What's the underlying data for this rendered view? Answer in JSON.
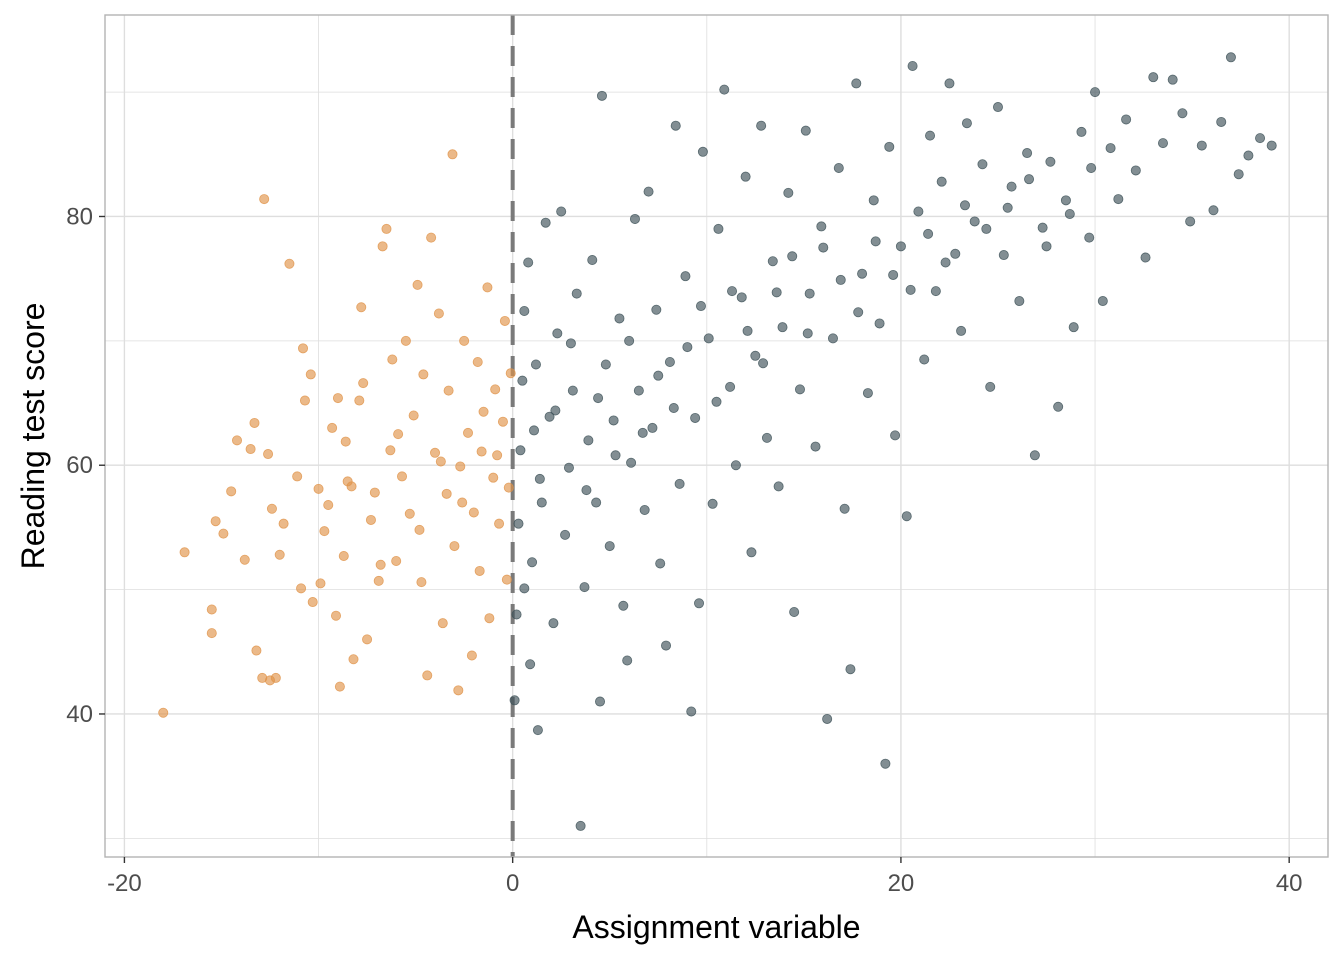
{
  "chart_data": {
    "type": "scatter",
    "xlabel": "Assignment variable",
    "ylabel": "Reading test score",
    "xlim": [
      -21,
      42
    ],
    "ylim": [
      28.5,
      96.2
    ],
    "x_ticks": [
      -20,
      0,
      20,
      40
    ],
    "x_tick_labels": [
      "-20",
      "0",
      "20",
      "40"
    ],
    "y_ticks": [
      40,
      60,
      80
    ],
    "y_tick_labels": [
      "40",
      "60",
      "80"
    ],
    "grid": true,
    "cutoff_x": 0,
    "colors": {
      "control": "#e0944a",
      "treatment": "#3f5259",
      "cutoff_line": "#7a7a7a",
      "grid": "#dedede",
      "panel_border": "#b3b3b3"
    },
    "series": [
      {
        "group": "control",
        "points": [
          [
            -18.0,
            40.1
          ],
          [
            -16.9,
            53.0
          ],
          [
            -15.5,
            48.4
          ],
          [
            -15.5,
            46.5
          ],
          [
            -15.3,
            55.5
          ],
          [
            -14.9,
            54.5
          ],
          [
            -14.5,
            57.9
          ],
          [
            -14.2,
            62.0
          ],
          [
            -13.8,
            52.4
          ],
          [
            -13.5,
            61.3
          ],
          [
            -13.3,
            63.4
          ],
          [
            -13.2,
            45.1
          ],
          [
            -12.9,
            42.9
          ],
          [
            -12.8,
            81.4
          ],
          [
            -12.6,
            60.9
          ],
          [
            -12.5,
            42.7
          ],
          [
            -12.4,
            56.5
          ],
          [
            -12.2,
            42.9
          ],
          [
            -12.0,
            52.8
          ],
          [
            -11.8,
            55.3
          ],
          [
            -11.5,
            76.2
          ],
          [
            -11.1,
            59.1
          ],
          [
            -10.9,
            50.1
          ],
          [
            -10.8,
            69.4
          ],
          [
            -10.7,
            65.2
          ],
          [
            -10.4,
            67.3
          ],
          [
            -10.3,
            49.0
          ],
          [
            -10.0,
            58.1
          ],
          [
            -9.9,
            50.5
          ],
          [
            -9.7,
            54.7
          ],
          [
            -9.5,
            56.8
          ],
          [
            -9.3,
            63.0
          ],
          [
            -9.1,
            47.9
          ],
          [
            -9.0,
            65.4
          ],
          [
            -8.9,
            42.2
          ],
          [
            -8.7,
            52.7
          ],
          [
            -8.6,
            61.9
          ],
          [
            -8.5,
            58.7
          ],
          [
            -8.2,
            44.4
          ],
          [
            -7.8,
            72.7
          ],
          [
            -7.7,
            66.6
          ],
          [
            -7.5,
            46.0
          ],
          [
            -7.3,
            55.6
          ],
          [
            -7.1,
            57.8
          ],
          [
            -6.9,
            50.7
          ],
          [
            -6.7,
            77.6
          ],
          [
            -6.5,
            79.0
          ],
          [
            -6.3,
            61.2
          ],
          [
            -6.2,
            68.5
          ],
          [
            -6.0,
            52.3
          ],
          [
            -5.7,
            59.1
          ],
          [
            -5.5,
            70.0
          ],
          [
            -5.3,
            56.1
          ],
          [
            -5.1,
            64.0
          ],
          [
            -4.9,
            74.5
          ],
          [
            -4.7,
            50.6
          ],
          [
            -4.6,
            67.3
          ],
          [
            -4.4,
            43.1
          ],
          [
            -4.2,
            78.3
          ],
          [
            -4.0,
            61.0
          ],
          [
            -3.8,
            72.2
          ],
          [
            -3.6,
            47.3
          ],
          [
            -3.4,
            57.7
          ],
          [
            -3.3,
            66.0
          ],
          [
            -3.1,
            85.0
          ],
          [
            -3.0,
            53.5
          ],
          [
            -2.8,
            41.9
          ],
          [
            -2.7,
            59.9
          ],
          [
            -2.5,
            70.0
          ],
          [
            -2.3,
            62.6
          ],
          [
            -2.1,
            44.7
          ],
          [
            -2.0,
            56.2
          ],
          [
            -1.8,
            68.3
          ],
          [
            -1.7,
            51.5
          ],
          [
            -1.5,
            64.3
          ],
          [
            -1.3,
            74.3
          ],
          [
            -1.2,
            47.7
          ],
          [
            -1.0,
            59.0
          ],
          [
            -0.9,
            66.1
          ],
          [
            -0.7,
            55.3
          ],
          [
            -0.5,
            63.5
          ],
          [
            -0.4,
            71.6
          ],
          [
            -0.3,
            50.8
          ],
          [
            -0.2,
            58.2
          ],
          [
            -0.1,
            67.4
          ],
          [
            -8.3,
            58.3
          ],
          [
            -7.9,
            65.2
          ],
          [
            -6.8,
            52.0
          ],
          [
            -5.9,
            62.5
          ],
          [
            -4.8,
            54.8
          ],
          [
            -3.7,
            60.3
          ],
          [
            -2.6,
            57.0
          ],
          [
            -1.6,
            61.1
          ],
          [
            -0.8,
            60.8
          ]
        ]
      },
      {
        "group": "treatment",
        "points": [
          [
            0.1,
            41.1
          ],
          [
            0.2,
            48.0
          ],
          [
            0.3,
            55.3
          ],
          [
            0.4,
            61.2
          ],
          [
            0.5,
            66.8
          ],
          [
            0.6,
            72.4
          ],
          [
            0.8,
            76.3
          ],
          [
            0.9,
            44.0
          ],
          [
            1.0,
            52.2
          ],
          [
            1.1,
            62.8
          ],
          [
            1.2,
            68.1
          ],
          [
            1.3,
            38.7
          ],
          [
            1.5,
            57.0
          ],
          [
            1.7,
            79.5
          ],
          [
            1.9,
            63.9
          ],
          [
            2.1,
            47.3
          ],
          [
            2.3,
            70.6
          ],
          [
            2.5,
            80.4
          ],
          [
            2.7,
            54.4
          ],
          [
            2.9,
            59.8
          ],
          [
            3.1,
            66.0
          ],
          [
            3.3,
            73.8
          ],
          [
            3.5,
            31.0
          ],
          [
            3.7,
            50.2
          ],
          [
            3.9,
            62.0
          ],
          [
            4.1,
            76.5
          ],
          [
            4.3,
            57.0
          ],
          [
            4.5,
            41.0
          ],
          [
            4.6,
            89.7
          ],
          [
            4.8,
            68.1
          ],
          [
            5.0,
            53.5
          ],
          [
            5.2,
            63.6
          ],
          [
            5.5,
            71.8
          ],
          [
            5.7,
            48.7
          ],
          [
            5.9,
            44.3
          ],
          [
            6.1,
            60.2
          ],
          [
            6.3,
            79.8
          ],
          [
            6.5,
            66.0
          ],
          [
            6.8,
            56.4
          ],
          [
            7.0,
            82.0
          ],
          [
            7.2,
            63.0
          ],
          [
            7.4,
            72.5
          ],
          [
            7.6,
            52.1
          ],
          [
            7.9,
            45.5
          ],
          [
            8.1,
            68.3
          ],
          [
            8.4,
            87.3
          ],
          [
            8.6,
            58.5
          ],
          [
            8.9,
            75.2
          ],
          [
            9.2,
            40.2
          ],
          [
            9.4,
            63.8
          ],
          [
            9.6,
            48.9
          ],
          [
            9.8,
            85.2
          ],
          [
            10.1,
            70.2
          ],
          [
            10.3,
            56.9
          ],
          [
            10.6,
            79.0
          ],
          [
            10.9,
            90.2
          ],
          [
            11.2,
            66.3
          ],
          [
            11.5,
            60.0
          ],
          [
            11.8,
            73.5
          ],
          [
            12.0,
            83.2
          ],
          [
            12.3,
            53.0
          ],
          [
            12.5,
            68.8
          ],
          [
            12.8,
            87.3
          ],
          [
            13.1,
            62.2
          ],
          [
            13.4,
            76.4
          ],
          [
            13.7,
            58.3
          ],
          [
            13.9,
            71.1
          ],
          [
            14.2,
            81.9
          ],
          [
            14.5,
            48.2
          ],
          [
            14.8,
            66.1
          ],
          [
            15.1,
            86.9
          ],
          [
            15.3,
            73.8
          ],
          [
            15.6,
            61.5
          ],
          [
            15.9,
            79.2
          ],
          [
            16.2,
            39.6
          ],
          [
            16.5,
            70.2
          ],
          [
            16.8,
            83.9
          ],
          [
            17.1,
            56.5
          ],
          [
            17.4,
            43.6
          ],
          [
            17.7,
            90.7
          ],
          [
            18.0,
            75.4
          ],
          [
            18.3,
            65.8
          ],
          [
            18.6,
            81.3
          ],
          [
            18.9,
            71.4
          ],
          [
            19.2,
            36.0
          ],
          [
            19.4,
            85.6
          ],
          [
            19.7,
            62.4
          ],
          [
            20.0,
            77.6
          ],
          [
            20.3,
            55.9
          ],
          [
            20.6,
            92.1
          ],
          [
            20.9,
            80.4
          ],
          [
            21.2,
            68.5
          ],
          [
            21.5,
            86.5
          ],
          [
            21.8,
            74.0
          ],
          [
            22.1,
            82.8
          ],
          [
            22.5,
            90.7
          ],
          [
            22.8,
            77.0
          ],
          [
            23.1,
            70.8
          ],
          [
            23.4,
            87.5
          ],
          [
            23.8,
            79.6
          ],
          [
            24.2,
            84.2
          ],
          [
            24.6,
            66.3
          ],
          [
            25.0,
            88.8
          ],
          [
            25.3,
            76.9
          ],
          [
            25.7,
            82.4
          ],
          [
            26.1,
            73.2
          ],
          [
            26.5,
            85.1
          ],
          [
            26.9,
            60.8
          ],
          [
            27.3,
            79.1
          ],
          [
            27.7,
            84.4
          ],
          [
            28.1,
            64.7
          ],
          [
            28.5,
            81.3
          ],
          [
            28.9,
            71.1
          ],
          [
            29.3,
            86.8
          ],
          [
            29.7,
            78.3
          ],
          [
            30.0,
            90.0
          ],
          [
            30.4,
            73.2
          ],
          [
            30.8,
            85.5
          ],
          [
            31.2,
            81.4
          ],
          [
            31.6,
            87.8
          ],
          [
            32.1,
            83.7
          ],
          [
            32.6,
            76.7
          ],
          [
            33.0,
            91.2
          ],
          [
            33.5,
            85.9
          ],
          [
            34.0,
            91.0
          ],
          [
            34.5,
            88.3
          ],
          [
            34.9,
            79.6
          ],
          [
            35.5,
            85.7
          ],
          [
            36.1,
            80.5
          ],
          [
            36.5,
            87.6
          ],
          [
            37.0,
            92.8
          ],
          [
            37.4,
            83.4
          ],
          [
            37.9,
            84.9
          ],
          [
            38.5,
            86.3
          ],
          [
            39.1,
            85.7
          ],
          [
            0.6,
            50.1
          ],
          [
            1.4,
            58.9
          ],
          [
            2.2,
            64.4
          ],
          [
            3.0,
            69.8
          ],
          [
            3.8,
            58.0
          ],
          [
            4.4,
            65.4
          ],
          [
            5.3,
            60.8
          ],
          [
            6.0,
            70.0
          ],
          [
            6.7,
            62.6
          ],
          [
            7.5,
            67.2
          ],
          [
            8.3,
            64.6
          ],
          [
            9.0,
            69.5
          ],
          [
            9.7,
            72.8
          ],
          [
            10.5,
            65.1
          ],
          [
            11.3,
            74.0
          ],
          [
            12.1,
            70.8
          ],
          [
            12.9,
            68.2
          ],
          [
            13.6,
            73.9
          ],
          [
            14.4,
            76.8
          ],
          [
            15.2,
            70.6
          ],
          [
            16.0,
            77.5
          ],
          [
            16.9,
            74.9
          ],
          [
            17.8,
            72.3
          ],
          [
            18.7,
            78.0
          ],
          [
            19.6,
            75.3
          ],
          [
            20.5,
            74.1
          ],
          [
            21.4,
            78.6
          ],
          [
            22.3,
            76.3
          ],
          [
            23.3,
            80.9
          ],
          [
            24.4,
            79.0
          ],
          [
            25.5,
            80.7
          ],
          [
            26.6,
            83.0
          ],
          [
            27.5,
            77.6
          ],
          [
            28.7,
            80.2
          ],
          [
            29.8,
            83.9
          ]
        ]
      }
    ]
  }
}
